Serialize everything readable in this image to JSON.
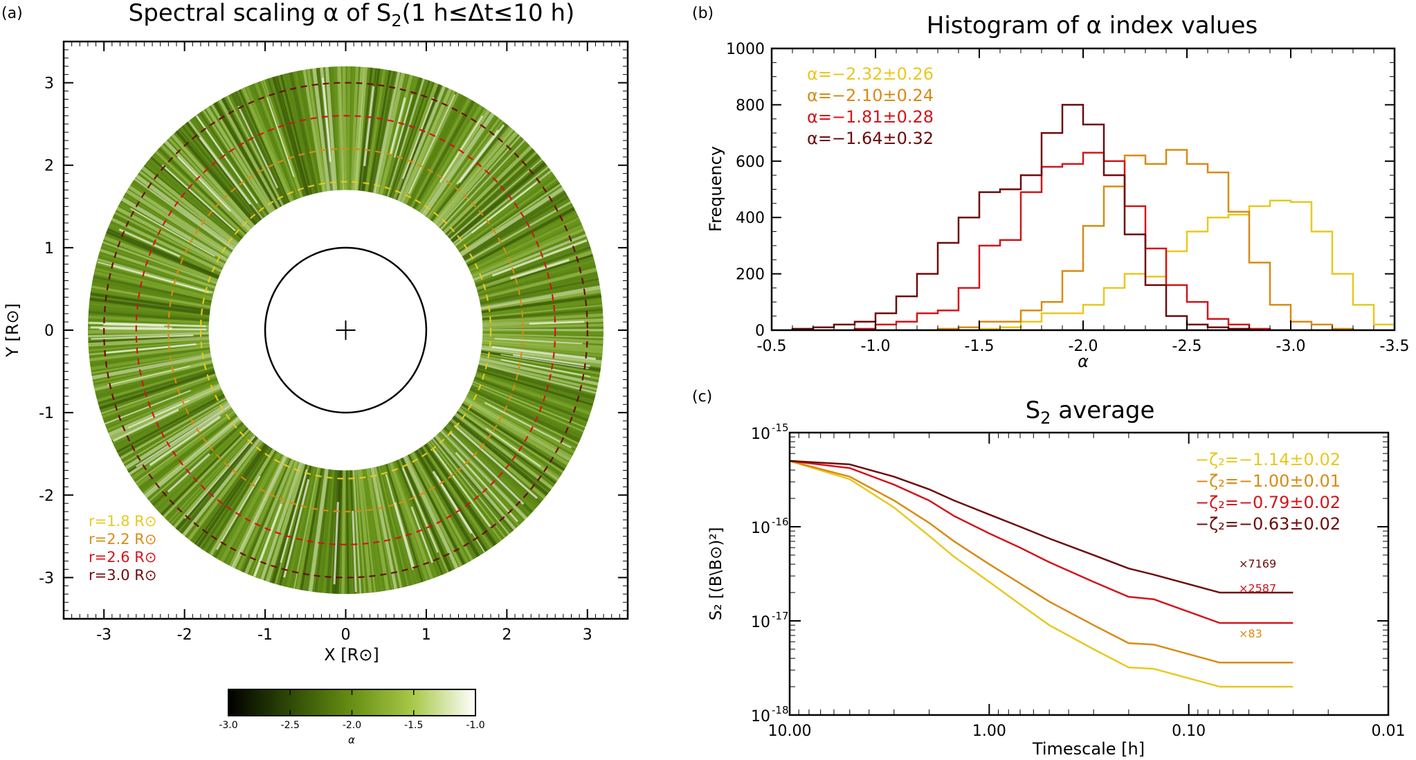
{
  "chart_data": [
    {
      "panel": "(a)",
      "type": "heatmap",
      "title": "Spectral scaling α of S₂(1 h≤Δt≤10 h)",
      "title_parts": {
        "main": "Spectral scaling α of S",
        "sub": "2",
        "tail": "(1 h≤Δt≤10 h)"
      },
      "xlabel": "X [R⊙]",
      "ylabel": "Y [R⊙]",
      "xlim": [
        -3.5,
        3.5
      ],
      "ylim": [
        -3.5,
        3.5
      ],
      "xticks": [
        -3,
        -2,
        -1,
        0,
        1,
        2,
        3
      ],
      "yticks": [
        -3,
        -2,
        -1,
        0,
        1,
        2,
        3
      ],
      "annulus_r_inner": 1.7,
      "annulus_r_outer": 3.2,
      "sun_radius": 1.0,
      "circles": [
        {
          "label": "r=1.8 R⊙",
          "r": 1.8,
          "color": "#e8c81e"
        },
        {
          "label": "r=2.2 R⊙",
          "r": 2.2,
          "color": "#d98a12"
        },
        {
          "label": "r=2.6 R⊙",
          "r": 2.6,
          "color": "#d4141a"
        },
        {
          "label": "r=3.0 R⊙",
          "r": 3.0,
          "color": "#6e0a0a"
        }
      ],
      "colorbar": {
        "min": -3.0,
        "max": -1.0,
        "ticks": [
          "-3.0",
          "-2.5",
          "-2.0",
          "-1.5",
          "-1.0"
        ],
        "label": "α"
      }
    },
    {
      "panel": "(b)",
      "type": "histogram",
      "title": "Histogram of α index values",
      "xlabel": "α",
      "ylabel": "Frequency",
      "xlim": [
        -0.5,
        -3.5
      ],
      "ylim": [
        0,
        1000
      ],
      "xticks": [
        "-0.5",
        "-1.0",
        "-1.5",
        "-2.0",
        "-2.5",
        "-3.0",
        "-3.5"
      ],
      "yticks": [
        "0",
        "200",
        "400",
        "600",
        "800",
        "1000"
      ],
      "bin_width": 0.1,
      "series": [
        {
          "name": "α=−2.32±0.26",
          "color": "#e8c81e",
          "start": -1.5,
          "values": [
            5,
            10,
            30,
            60,
            60,
            90,
            150,
            200,
            190,
            280,
            350,
            400,
            410,
            440,
            460,
            455,
            350,
            200,
            90,
            20,
            0
          ]
        },
        {
          "name": "α=−2.10±0.24",
          "color": "#d98a12",
          "start": -1.3,
          "values": [
            5,
            10,
            30,
            30,
            70,
            100,
            210,
            370,
            510,
            620,
            590,
            640,
            590,
            560,
            420,
            240,
            90,
            30,
            20,
            5
          ]
        },
        {
          "name": "α=−1.81±0.28",
          "color": "#d4141a",
          "start": -0.9,
          "values": [
            5,
            20,
            30,
            60,
            70,
            150,
            300,
            320,
            490,
            580,
            590,
            630,
            600,
            440,
            290,
            160,
            100,
            40,
            20,
            5
          ]
        },
        {
          "name": "α=−1.64±0.32",
          "color": "#6e0a0a",
          "start": -0.6,
          "values": [
            5,
            10,
            20,
            30,
            60,
            120,
            200,
            310,
            400,
            490,
            500,
            550,
            700,
            800,
            730,
            550,
            340,
            160,
            50,
            20,
            10,
            5
          ]
        }
      ]
    },
    {
      "panel": "(c)",
      "type": "line",
      "title": "S₂ average",
      "title_parts": {
        "main": "S",
        "sub": "2",
        "tail": " average"
      },
      "xlabel": "Timescale [h]",
      "ylabel": "S₂ [(B\\B⊙)²]",
      "xscale": "log-reversed",
      "yscale": "log",
      "xlim": [
        10.0,
        0.01
      ],
      "ylim": [
        1e-18,
        1e-15
      ],
      "xticks": [
        "10.00",
        "1.00",
        "0.10",
        "0.01"
      ],
      "yticks": [
        "10",
        "10",
        "10",
        "10"
      ],
      "ytick_exps": [
        "-18",
        "-17",
        "-16",
        "-15"
      ],
      "series": [
        {
          "name": "−ζ₂=−1.14±0.02",
          "color": "#e8c81e",
          "scale_label": "",
          "x": [
            10,
            5,
            3,
            2,
            1.5,
            1,
            0.7,
            0.5,
            0.3,
            0.2,
            0.15,
            0.07,
            0.03
          ],
          "y": [
            5e-16,
            3.2e-16,
            1.6e-16,
            8e-17,
            4.8e-17,
            2.6e-17,
            1.5e-17,
            9e-18,
            5e-18,
            3.2e-18,
            3.1e-18,
            2e-18,
            2e-18
          ]
        },
        {
          "name": "−ζ₂=−1.00±0.01",
          "color": "#d98a12",
          "scale_label": "×83",
          "x": [
            10,
            5,
            3,
            2,
            1.5,
            1,
            0.7,
            0.5,
            0.3,
            0.2,
            0.15,
            0.07,
            0.03
          ],
          "y": [
            5e-16,
            3.4e-16,
            1.9e-16,
            1.1e-16,
            7e-17,
            4e-17,
            2.5e-17,
            1.6e-17,
            9e-18,
            5.8e-18,
            5.6e-18,
            3.6e-18,
            3.6e-18
          ]
        },
        {
          "name": "−ζ₂=−0.79±0.02",
          "color": "#d4141a",
          "scale_label": "×2587",
          "x": [
            10,
            5,
            3,
            2,
            1.5,
            1,
            0.7,
            0.5,
            0.3,
            0.2,
            0.15,
            0.07,
            0.03
          ],
          "y": [
            5e-16,
            4.2e-16,
            2.8e-16,
            1.9e-16,
            1.3e-16,
            8.5e-17,
            6e-17,
            4.2e-17,
            2.6e-17,
            1.8e-17,
            1.7e-17,
            9.5e-18,
            9.5e-18
          ]
        },
        {
          "name": "−ζ₂=−0.63±0.02",
          "color": "#6e0a0a",
          "scale_label": "×7169",
          "x": [
            10,
            5,
            3,
            2,
            1.5,
            1,
            0.7,
            0.5,
            0.3,
            0.2,
            0.15,
            0.07,
            0.03
          ],
          "y": [
            5e-16,
            4.6e-16,
            3.4e-16,
            2.5e-16,
            1.9e-16,
            1.35e-16,
            1e-16,
            7.5e-17,
            5e-17,
            3.6e-17,
            3.1e-17,
            2e-17,
            2e-17
          ]
        }
      ]
    }
  ]
}
